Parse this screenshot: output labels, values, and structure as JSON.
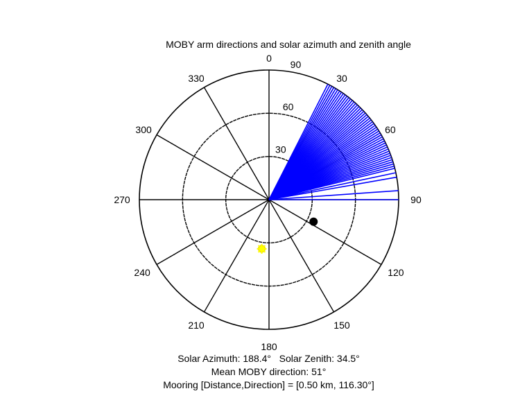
{
  "chart_data": {
    "type": "polar",
    "title": "MOBY arm directions and solar azimuth and zenith angle",
    "angle_ticks": [
      "0",
      "30",
      "60",
      "90",
      "120",
      "150",
      "180",
      "210",
      "240",
      "270",
      "300",
      "330"
    ],
    "angle_tick_values": [
      0,
      30,
      60,
      90,
      120,
      150,
      180,
      210,
      240,
      270,
      300,
      330
    ],
    "radial_ticks": [
      "30",
      "60",
      "90"
    ],
    "radial_tick_values": [
      30,
      60,
      90
    ],
    "rlim": [
      0,
      90
    ],
    "zero_direction": "top",
    "rotation": "clockwise",
    "grid": true,
    "series": [
      {
        "color": "#0000ff",
        "kind": "arm-lines",
        "directions_deg": [
          27,
          28,
          29,
          30,
          31,
          32,
          33,
          34,
          35,
          36,
          37,
          38,
          39,
          40,
          41,
          42,
          43,
          44,
          45,
          46,
          47,
          48,
          49,
          50,
          51,
          52,
          53,
          54,
          55,
          56,
          57,
          58,
          59,
          60,
          61,
          62,
          63,
          64,
          65,
          66,
          67,
          68,
          69,
          70,
          71,
          72,
          73,
          74,
          75,
          76,
          78,
          80,
          86,
          90
        ],
        "r": 90
      },
      {
        "color": "#000000",
        "kind": "marker",
        "label": "Mooring",
        "direction_deg": 116.3,
        "r": 34.5
      },
      {
        "color": "#ffff00",
        "kind": "marker",
        "label": "Sun",
        "direction_deg": 188.4,
        "r": 34.5
      }
    ]
  },
  "captions": {
    "line1": "Solar Azimuth: 188.4°   Solar Zenith: 34.5°",
    "line2": "Mean MOBY direction: 51°",
    "line3": "Mooring [Distance,Direction] = [0.50 km, 116.30°]"
  }
}
